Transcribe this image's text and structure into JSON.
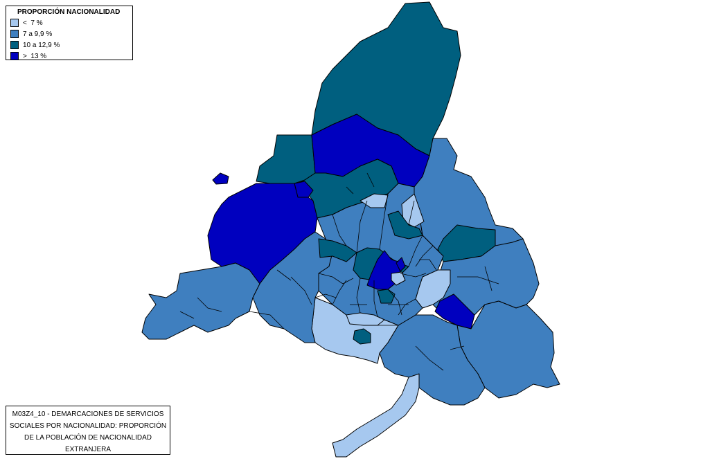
{
  "legend": {
    "title": "PROPORCIÓN NACIONALIDAD",
    "items": [
      {
        "label": "<  7 %",
        "color": "#a6c8ef"
      },
      {
        "label": "7 a 9,9 %",
        "color": "#3f7fbf"
      },
      {
        "label": "10 a 12,9 %",
        "color": "#005f7f"
      },
      {
        "label": ">  13 %",
        "color": "#0000bf"
      }
    ]
  },
  "caption": {
    "lines": [
      "M03Z4_10 - DEMARCACIONES DE SERVICIOS",
      "SOCIALES POR NACIONALIDAD: PROPORCIÓN",
      "DE LA POBLACIÓN DE NACIONALIDAD",
      "EXTRANJERA"
    ]
  },
  "colors": {
    "class_lt7": "#a6c8ef",
    "class_7_9": "#3f7fbf",
    "class_10_12": "#005f7f",
    "class_gt13": "#0000bf"
  }
}
